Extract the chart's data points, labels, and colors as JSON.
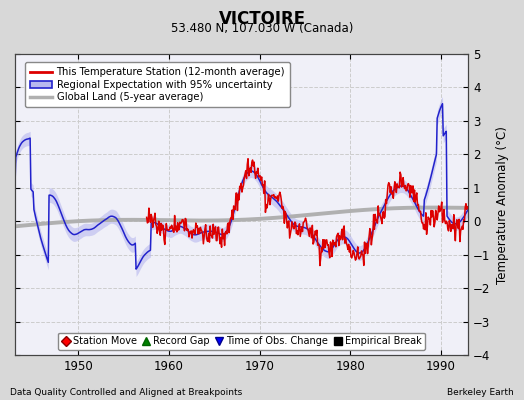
{
  "title": "VICTOIRE",
  "subtitle": "53.480 N, 107.030 W (Canada)",
  "ylabel": "Temperature Anomaly (°C)",
  "footer_left": "Data Quality Controlled and Aligned at Breakpoints",
  "footer_right": "Berkeley Earth",
  "xlim": [
    1943,
    1993
  ],
  "ylim": [
    -4,
    5
  ],
  "yticks": [
    -4,
    -3,
    -2,
    -1,
    0,
    1,
    2,
    3,
    4,
    5
  ],
  "xticks": [
    1950,
    1960,
    1970,
    1980,
    1990
  ],
  "bg_color": "#d8d8d8",
  "plot_bg_color": "#f0f0f8",
  "red_color": "#dd0000",
  "blue_color": "#2222cc",
  "blue_fill_color": "#b8b8ee",
  "gray_color": "#b0b0b0",
  "legend1_items": [
    "This Temperature Station (12-month average)",
    "Regional Expectation with 95% uncertainty",
    "Global Land (5-year average)"
  ],
  "legend2_items": [
    "Station Move",
    "Record Gap",
    "Time of Obs. Change",
    "Empirical Break"
  ],
  "seed": 12345,
  "n_monthly": 600,
  "start_year": 1943.0,
  "end_year": 1993.0
}
